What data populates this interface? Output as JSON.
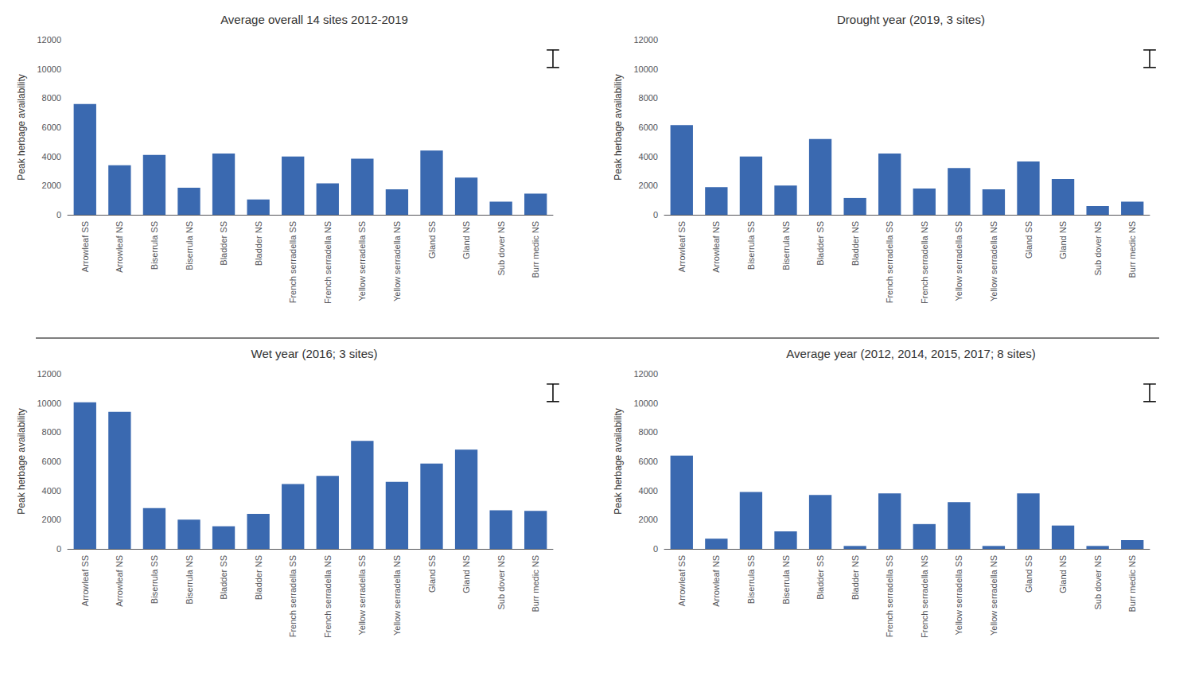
{
  "chart_data": [
    {
      "type": "bar",
      "title": "Average overall 14 sites 2012-2019",
      "categories": [
        "Arrowleaf SS",
        "Arrowleaf NS",
        "Biserrula SS",
        "Biserrula NS",
        "Bladder SS",
        "Bladder NS",
        "French serradella SS",
        "French serradella NS",
        "Yellow serradella SS",
        "Yellow serradella NS",
        "Gland SS",
        "Gland NS",
        "Sub dover NS",
        "Burr medic NS"
      ],
      "values": [
        7600,
        3400,
        4100,
        1850,
        4200,
        1050,
        4000,
        2150,
        3850,
        1750,
        4400,
        2550,
        900,
        1450
      ],
      "color": "#3a69b0",
      "ylabel": "Peak herbage availability",
      "ylim": [
        0,
        12000
      ],
      "yticks": [
        0,
        2000,
        4000,
        6000,
        8000,
        10000,
        12000
      ],
      "grid": false,
      "error_bar": {
        "center": 10700,
        "height": 1200
      }
    },
    {
      "type": "bar",
      "title": "Drought year (2019, 3 sites)",
      "categories": [
        "Arrowleaf SS",
        "Arrowleaf NS",
        "Biserrula SS",
        "Biserrula NS",
        "Bladder SS",
        "Bladder NS",
        "French serradella SS",
        "French serradella NS",
        "Yellow serradella SS",
        "Yellow serradella NS",
        "Gland SS",
        "Gland NS",
        "Sub dover NS",
        "Burr medic NS"
      ],
      "values": [
        6150,
        1900,
        4000,
        2000,
        5200,
        1150,
        4200,
        1800,
        3200,
        1750,
        3650,
        2450,
        600,
        900
      ],
      "color": "#3a69b0",
      "ylabel": "Peak herbage availability",
      "ylim": [
        0,
        12000
      ],
      "yticks": [
        0,
        2000,
        4000,
        6000,
        8000,
        10000,
        12000
      ],
      "grid": false,
      "error_bar": {
        "center": 10700,
        "height": 1200
      }
    },
    {
      "type": "bar",
      "title": "Wet year (2016; 3 sites)",
      "categories": [
        "Arrowleaf SS",
        "Arrowleaf NS",
        "Biserrula SS",
        "Biserrula NS",
        "Bladder SS",
        "Bladder NS",
        "French serradella SS",
        "French serradella NS",
        "Yellow serradella SS",
        "Yellow serradella NS",
        "Gland SS",
        "Gland NS",
        "Sub dover NS",
        "Burr medic NS"
      ],
      "values": [
        10050,
        9400,
        2800,
        2000,
        1550,
        2400,
        4450,
        5000,
        7400,
        4600,
        5850,
        6800,
        2650,
        2600
      ],
      "color": "#3a69b0",
      "ylabel": "Peak herbage availability",
      "ylim": [
        0,
        12000
      ],
      "yticks": [
        0,
        2000,
        4000,
        6000,
        8000,
        10000,
        12000
      ],
      "grid": false,
      "error_bar": {
        "center": 10700,
        "height": 1200
      }
    },
    {
      "type": "bar",
      "title": "Average year (2012, 2014, 2015, 2017; 8 sites)",
      "categories": [
        "Arrowleaf SS",
        "Arrowleaf NS",
        "Biserrula SS",
        "Biserrula NS",
        "Bladder SS",
        "Bladder NS",
        "French serradella SS",
        "French serradella NS",
        "Yellow serradella SS",
        "Yellow serradella NS",
        "Gland SS",
        "Gland NS",
        "Sub dover NS",
        "Burr medic NS"
      ],
      "values": [
        6400,
        700,
        3900,
        1200,
        3700,
        200,
        3800,
        1700,
        3200,
        200,
        3800,
        1600,
        200,
        600
      ],
      "color": "#3a69b0",
      "ylabel": "Peak herbage availability",
      "ylim": [
        0,
        12000
      ],
      "yticks": [
        0,
        2000,
        4000,
        6000,
        8000,
        10000,
        12000
      ],
      "grid": false,
      "error_bar": {
        "center": 10700,
        "height": 1200
      }
    }
  ]
}
